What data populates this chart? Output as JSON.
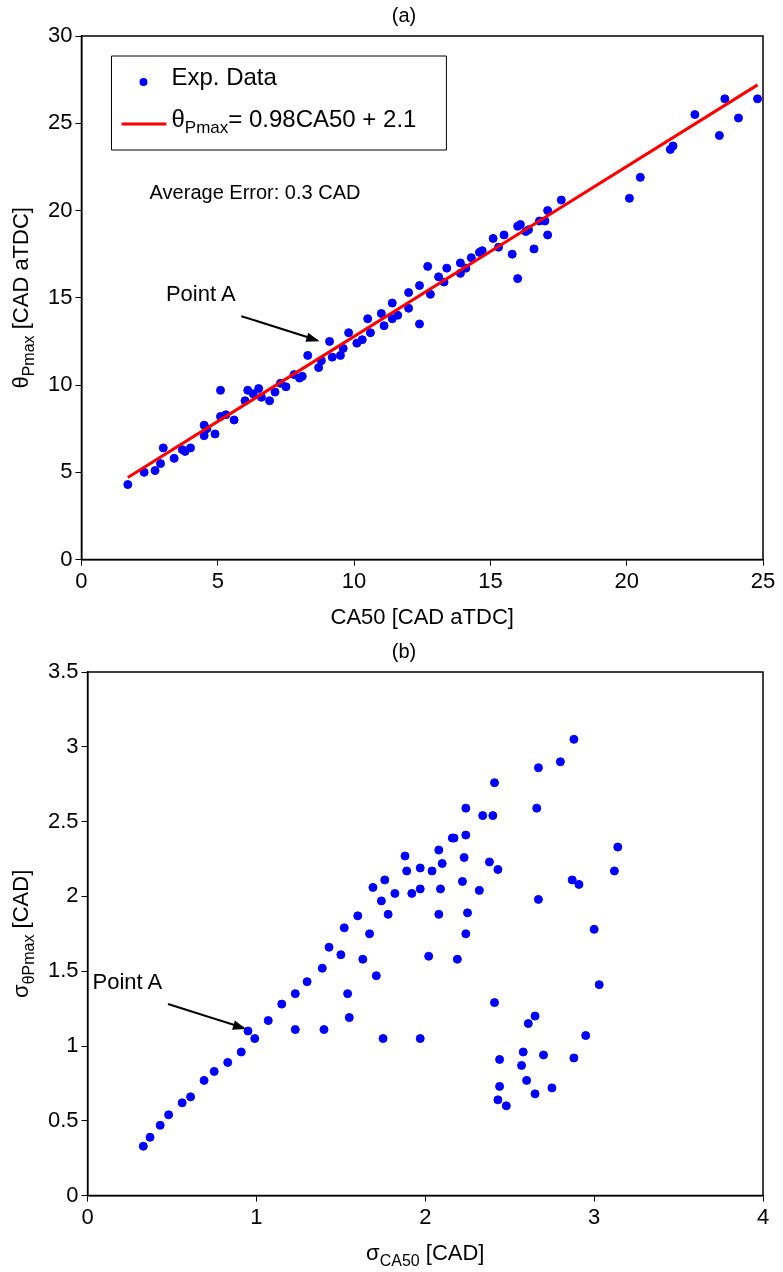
{
  "chart_data": [
    {
      "type": "scatter",
      "title": "(a)",
      "xlabel": "CA50 [CAD aTDC]",
      "ylabel": "θ$_{Pmax}$ [CAD aTDC]",
      "xlim": [
        0,
        25
      ],
      "xticks": [
        0,
        5,
        10,
        15,
        20,
        25
      ],
      "ylim": [
        0,
        30
      ],
      "yticks": [
        0,
        5,
        10,
        15,
        20,
        25,
        30
      ],
      "legend": "top left",
      "annotations": [
        "Average Error: 0.3 CAD",
        {
          "text": "Point A",
          "x": 8.8,
          "y": 12.4
        }
      ],
      "series": [
        {
          "name": "Exp. Data",
          "type": "scatter",
          "marker": "circle",
          "color": "#0000ff",
          "x": [
            1.7,
            2.3,
            2.7,
            3.0,
            2.9,
            3.4,
            3.7,
            4.0,
            4.5,
            4.5,
            4.9,
            5.1,
            5.1,
            5.6,
            6.0,
            6.1,
            6.5,
            6.6,
            6.9,
            7.1,
            7.5,
            7.8,
            8.1,
            8.3,
            8.7,
            9.1,
            9.2,
            9.5,
            9.8,
            10.1,
            10.5,
            10.6,
            11.0,
            11.4,
            11.4,
            12.0,
            12.0,
            12.4,
            12.7,
            12.8,
            12.4,
            13.1,
            13.4,
            13.9,
            13.9,
            14.3,
            14.7,
            15.1,
            15.5,
            15.8,
            16.0,
            16.1,
            16.0,
            16.4,
            16.6,
            16.8,
            17.0,
            17.1,
            17.1,
            17.6,
            20.1,
            20.5,
            21.6,
            21.7,
            22.5,
            23.4,
            23.6,
            24.1,
            24.8,
            3.8,
            4.6,
            5.3,
            6.3,
            7.3,
            8.0,
            8.8,
            9.6,
            10.3,
            11.1,
            11.6,
            13.3,
            14.1,
            14.6,
            15.3,
            16.3
          ],
          "values": [
            4.3,
            5.0,
            5.1,
            6.4,
            5.5,
            5.8,
            6.3,
            6.4,
            7.7,
            7.1,
            7.2,
            9.7,
            8.2,
            8.0,
            9.1,
            9.7,
            9.8,
            9.3,
            9.1,
            9.6,
            9.9,
            10.6,
            10.5,
            11.7,
            11.0,
            12.5,
            11.6,
            11.7,
            13.0,
            12.4,
            13.8,
            13.0,
            14.1,
            13.8,
            14.7,
            15.3,
            14.4,
            13.5,
            16.8,
            15.2,
            15.7,
            16.2,
            16.7,
            17.0,
            16.4,
            17.3,
            17.7,
            18.4,
            18.6,
            17.5,
            19.1,
            19.2,
            16.1,
            18.9,
            17.8,
            19.4,
            19.4,
            20.0,
            18.6,
            20.6,
            20.7,
            21.9,
            23.5,
            23.7,
            25.5,
            24.3,
            26.4,
            25.3,
            26.4,
            6.2,
            7.5,
            8.3,
            9.5,
            10.1,
            10.4,
            11.4,
            12.1,
            12.6,
            13.4,
            14.0,
            15.9,
            16.7,
            17.6,
            17.9,
            18.8
          ]
        },
        {
          "name": "θ$_{Pmax}$= 0.98CA50 + 2.1",
          "type": "line",
          "marker": "none",
          "color": "#ff0000",
          "line_style": "solid",
          "x": [
            1.7,
            24.8
          ],
          "values": [
            4.7,
            27.2
          ]
        }
      ]
    },
    {
      "type": "scatter",
      "title": "(b)",
      "xlabel": "σ$_{CA50}$ [CAD]",
      "ylabel": "σ$_{θPmax}$ [CAD]",
      "xlim": [
        0,
        4
      ],
      "xticks": [
        0,
        1,
        2,
        3,
        4
      ],
      "ylim": [
        0,
        3.5
      ],
      "yticks": [
        0,
        0.5,
        1,
        1.5,
        2,
        2.5,
        3,
        3.5
      ],
      "marker": "circle",
      "annotations": [
        {
          "text": "Point A",
          "x": 0.95,
          "y": 1.1
        }
      ],
      "series": [
        {
          "type": "scatter",
          "color": "#0000ff",
          "x": [
            0.95,
            0.33,
            0.37,
            0.43,
            0.48,
            0.56,
            0.61,
            0.69,
            0.75,
            0.83,
            0.91,
            0.99,
            1.07,
            1.15,
            1.23,
            1.23,
            1.3,
            1.39,
            1.4,
            1.43,
            1.5,
            1.54,
            1.55,
            1.52,
            1.6,
            1.63,
            1.67,
            1.69,
            1.71,
            1.74,
            1.75,
            1.76,
            1.78,
            1.82,
            1.88,
            1.89,
            1.92,
            1.97,
            1.97,
            1.97,
            2.02,
            2.04,
            2.08,
            2.08,
            2.09,
            2.1,
            2.16,
            2.17,
            2.19,
            2.22,
            2.23,
            2.24,
            2.24,
            2.24,
            2.25,
            2.32,
            2.34,
            2.38,
            2.4,
            2.41,
            2.41,
            2.43,
            2.44,
            2.44,
            2.43,
            2.48,
            2.57,
            2.58,
            2.6,
            2.61,
            2.65,
            2.65,
            2.66,
            2.67,
            2.67,
            2.7,
            2.75,
            2.8,
            2.87,
            2.88,
            2.88,
            2.91,
            2.95,
            3.0,
            3.03,
            3.12,
            3.14
          ],
          "values": [
            1.1,
            0.33,
            0.39,
            0.47,
            0.54,
            0.62,
            0.66,
            0.77,
            0.83,
            0.89,
            0.96,
            1.05,
            1.17,
            1.28,
            1.35,
            1.11,
            1.43,
            1.52,
            1.11,
            1.66,
            1.61,
            1.35,
            1.19,
            1.79,
            1.87,
            1.58,
            1.75,
            2.06,
            1.47,
            1.97,
            1.05,
            2.11,
            1.88,
            2.02,
            2.27,
            2.17,
            2.02,
            1.05,
            2.19,
            2.05,
            1.6,
            2.17,
            2.31,
            1.88,
            2.05,
            2.22,
            2.39,
            2.39,
            1.58,
            2.1,
            2.26,
            2.59,
            2.41,
            1.75,
            1.89,
            2.04,
            2.54,
            2.23,
            2.54,
            2.76,
            1.29,
            2.18,
            0.91,
            0.73,
            0.64,
            0.6,
            0.87,
            0.96,
            0.77,
            1.15,
            1.2,
            0.68,
            2.59,
            1.98,
            2.86,
            0.94,
            0.72,
            2.9,
            2.11,
            3.05,
            0.92,
            2.08,
            1.07,
            1.78,
            1.41,
            2.17,
            2.33
          ]
        }
      ]
    }
  ]
}
